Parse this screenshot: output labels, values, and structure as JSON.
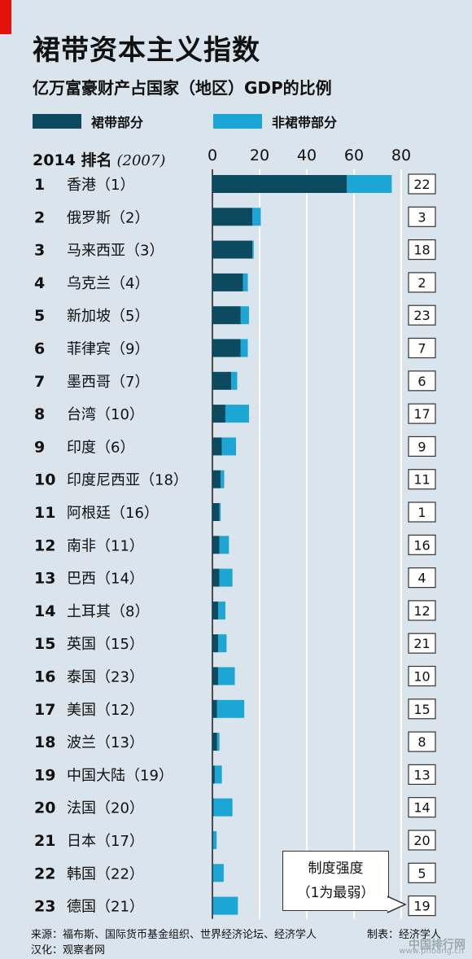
{
  "title": "裙带资本主义指数",
  "subtitle": "亿万富豪财产占国家（地区）GDP的比例",
  "legend": {
    "crony": "裙带部分",
    "non_crony": "非裙带部分"
  },
  "rank_header": {
    "label": "2014 排名",
    "prior": "(2007)"
  },
  "callout": {
    "line1": "制度强度",
    "line2": "（1为最弱）"
  },
  "footer": {
    "source": "来源：福布斯、国际货币基金组织、世界经济论坛、经济学人",
    "maker": "制表：经济学人",
    "translation": "汉化：观察者网"
  },
  "watermark": "中国排行网",
  "watermark_url": "www.phbang.cn",
  "colors": {
    "crony": "#0c4a5f",
    "non_crony": "#1ba6d6",
    "accent": "#e3120b",
    "background": "#d9e4ec"
  },
  "chart_data": {
    "type": "bar",
    "orientation": "horizontal",
    "stacked": true,
    "x_ticks": [
      "0",
      "20",
      "40",
      "60",
      "80"
    ],
    "xlim": [
      0,
      80
    ],
    "grid": true,
    "legend_position": "top",
    "categories": [
      {
        "rank": "1",
        "name": "香港",
        "prior": "（1）",
        "strength": "22"
      },
      {
        "rank": "2",
        "name": "俄罗斯",
        "prior": "（2）",
        "strength": "3"
      },
      {
        "rank": "3",
        "name": "马来西亚",
        "prior": "（3）",
        "strength": "18"
      },
      {
        "rank": "4",
        "name": "乌克兰",
        "prior": "（4）",
        "strength": "2"
      },
      {
        "rank": "5",
        "name": "新加坡",
        "prior": "（5）",
        "strength": "23"
      },
      {
        "rank": "6",
        "name": "菲律宾",
        "prior": "（9）",
        "strength": "7"
      },
      {
        "rank": "7",
        "name": "墨西哥",
        "prior": "（7）",
        "strength": "6"
      },
      {
        "rank": "8",
        "name": "台湾",
        "prior": "（10）",
        "strength": "17"
      },
      {
        "rank": "9",
        "name": "印度",
        "prior": "（6）",
        "strength": "9"
      },
      {
        "rank": "10",
        "name": "印度尼西亚",
        "prior": "（18）",
        "strength": "11"
      },
      {
        "rank": "11",
        "name": "阿根廷",
        "prior": "（16）",
        "strength": "1"
      },
      {
        "rank": "12",
        "name": "南非",
        "prior": "（11）",
        "strength": "16"
      },
      {
        "rank": "13",
        "name": "巴西",
        "prior": "（14）",
        "strength": "4"
      },
      {
        "rank": "14",
        "name": "土耳其",
        "prior": "（8）",
        "strength": "12"
      },
      {
        "rank": "15",
        "name": "英国",
        "prior": "（15）",
        "strength": "21"
      },
      {
        "rank": "16",
        "name": "泰国",
        "prior": "（23）",
        "strength": "10"
      },
      {
        "rank": "17",
        "name": "美国",
        "prior": "（12）",
        "strength": "15"
      },
      {
        "rank": "18",
        "name": "波兰",
        "prior": "（13）",
        "strength": "8"
      },
      {
        "rank": "19",
        "name": "中国大陆",
        "prior": "（19）",
        "strength": "13"
      },
      {
        "rank": "20",
        "name": "法国",
        "prior": "（20）",
        "strength": "14"
      },
      {
        "rank": "21",
        "name": "日本",
        "prior": "（17）",
        "strength": "20"
      },
      {
        "rank": "22",
        "name": "韩国",
        "prior": "（22）",
        "strength": "5"
      },
      {
        "rank": "23",
        "name": "德国",
        "prior": "（21）",
        "strength": "19"
      }
    ],
    "series": [
      {
        "name": "裙带部分",
        "values": [
          57,
          17,
          17,
          13,
          12,
          12,
          8,
          5.5,
          4,
          3.5,
          3,
          3,
          3,
          2.5,
          2.5,
          2.5,
          2,
          2,
          1,
          0.5,
          0.3,
          0.3,
          0.3
        ]
      },
      {
        "name": "非裙带部分",
        "values": [
          19,
          3.5,
          0.5,
          2,
          3.5,
          3,
          2.5,
          10,
          6,
          1.5,
          0.5,
          4,
          5.5,
          3,
          3.5,
          7,
          11.5,
          1,
          3,
          8,
          1.5,
          4.5,
          10.5
        ]
      }
    ]
  }
}
